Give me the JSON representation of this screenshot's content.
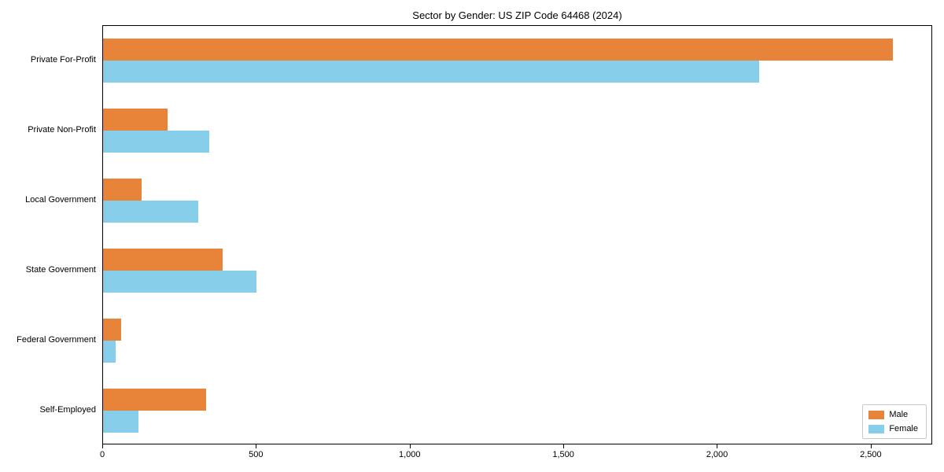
{
  "title": "Sector by Gender: US ZIP Code 64468 (2024)",
  "colors": {
    "male": "#E8833A",
    "female": "#87CEEB",
    "axis": "#000000",
    "background": "#ffffff"
  },
  "legend": {
    "items": [
      {
        "label": "Male",
        "color": "#E8833A"
      },
      {
        "label": "Female",
        "color": "#87CEEB"
      }
    ]
  },
  "chart_data": {
    "type": "bar",
    "orientation": "horizontal",
    "title": "Sector by Gender: US ZIP Code 64468 (2024)",
    "categories": [
      "Private For-Profit",
      "Private Non-Profit",
      "Local Government",
      "State Government",
      "Federal Government",
      "Self-Employed"
    ],
    "series": [
      {
        "name": "Male",
        "color": "#E8833A",
        "values": [
          2570,
          210,
          125,
          390,
          60,
          335
        ]
      },
      {
        "name": "Female",
        "color": "#87CEEB",
        "values": [
          2135,
          345,
          310,
          500,
          40,
          115
        ]
      }
    ],
    "xlabel": "",
    "ylabel": "",
    "xlim": [
      0,
      2700
    ],
    "xticks": [
      0,
      500,
      1000,
      1500,
      2000,
      2500
    ],
    "xtick_labels": [
      "0",
      "500",
      "1,000",
      "1,500",
      "2,000",
      "2,500"
    ],
    "grid": false,
    "legend_position": "lower right"
  }
}
